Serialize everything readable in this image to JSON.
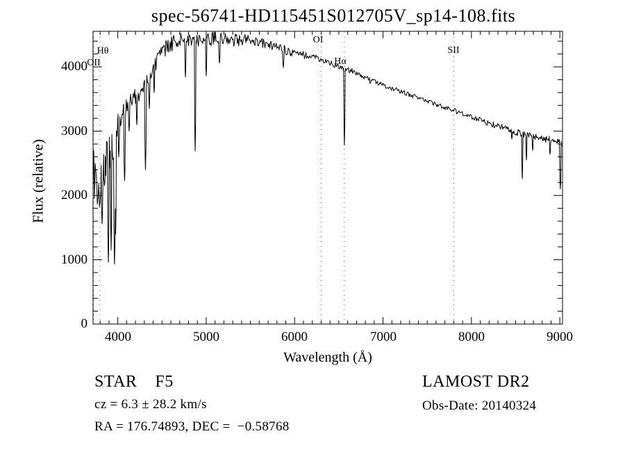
{
  "title": "spec-56741-HD115451S012705V_sp14-108.fits",
  "annotations": {
    "class_line": "STAR    F5",
    "cz_line": "cz = 6.3 ± 28.2 km/s",
    "radec_line": "RA = 176.74893, DEC =  −0.58768",
    "survey": "LAMOST DR2",
    "obs_date_line": "Obs-Date: 20140324"
  },
  "colors": {
    "curve": "#000000",
    "marker_line": "#993333",
    "frame": "#000000",
    "text": "#000000",
    "background": "#ffffff"
  },
  "chart_data": {
    "type": "line",
    "title": "spec-56741-HD115451S012705V_sp14-108.fits",
    "xlabel": "Wavelength (Å)",
    "ylabel": "Flux (relative)",
    "xlim": [
      3720,
      9030
    ],
    "ylim": [
      0,
      4553
    ],
    "grid": false,
    "x_ticks": [
      4000,
      5000,
      6000,
      7000,
      8000,
      9000
    ],
    "y_ticks": [
      0,
      1000,
      2000,
      3000,
      4000
    ],
    "x_minor_step": 100,
    "y_minor_step": 200,
    "line_markers": [
      {
        "label": "OII",
        "wavelength": 3727,
        "label_dx": 0,
        "label_y": 84
      },
      {
        "label": "Hθ",
        "wavelength": 3798,
        "label_dx": 4,
        "label_y": 67
      },
      {
        "label": "OI",
        "wavelength": 6300,
        "label_dx": -4,
        "label_y": 51
      },
      {
        "label": "Hα",
        "wavelength": 6563,
        "label_dx": -6,
        "label_y": 82
      },
      {
        "label": "SII",
        "wavelength": 7800,
        "label_dx": 0,
        "label_y": 66
      }
    ],
    "continuum": [
      [
        3720,
        2150
      ],
      [
        3760,
        2150
      ],
      [
        3800,
        2300
      ],
      [
        3840,
        2450
      ],
      [
        3880,
        2600
      ],
      [
        3920,
        2750
      ],
      [
        3960,
        2900
      ],
      [
        4000,
        3080
      ],
      [
        4040,
        3230
      ],
      [
        4090,
        3350
      ],
      [
        4140,
        3440
      ],
      [
        4200,
        3540
      ],
      [
        4260,
        3620
      ],
      [
        4320,
        3720
      ],
      [
        4380,
        3880
      ],
      [
        4440,
        4060
      ],
      [
        4500,
        4220
      ],
      [
        4560,
        4320
      ],
      [
        4640,
        4390
      ],
      [
        4720,
        4420
      ],
      [
        4800,
        4430
      ],
      [
        4900,
        4420
      ],
      [
        5000,
        4430
      ],
      [
        5100,
        4440
      ],
      [
        5200,
        4430
      ],
      [
        5300,
        4410
      ],
      [
        5400,
        4420
      ],
      [
        5500,
        4400
      ],
      [
        5600,
        4370
      ],
      [
        5700,
        4340
      ],
      [
        5800,
        4300
      ],
      [
        5900,
        4260
      ],
      [
        6000,
        4220
      ],
      [
        6100,
        4190
      ],
      [
        6200,
        4150
      ],
      [
        6300,
        4110
      ],
      [
        6400,
        4060
      ],
      [
        6500,
        4010
      ],
      [
        6600,
        3960
      ],
      [
        6700,
        3900
      ],
      [
        6800,
        3840
      ],
      [
        6900,
        3780
      ],
      [
        7000,
        3720
      ],
      [
        7100,
        3670
      ],
      [
        7200,
        3620
      ],
      [
        7300,
        3570
      ],
      [
        7400,
        3520
      ],
      [
        7500,
        3470
      ],
      [
        7600,
        3420
      ],
      [
        7700,
        3370
      ],
      [
        7800,
        3320
      ],
      [
        7900,
        3270
      ],
      [
        8000,
        3220
      ],
      [
        8100,
        3170
      ],
      [
        8200,
        3120
      ],
      [
        8300,
        3080
      ],
      [
        8400,
        3040
      ],
      [
        8500,
        2990
      ],
      [
        8600,
        2950
      ],
      [
        8700,
        2905
      ],
      [
        8800,
        2880
      ],
      [
        8900,
        2870
      ],
      [
        8950,
        2855
      ],
      [
        9000,
        2820
      ],
      [
        9030,
        2800
      ]
    ],
    "absorption_lines": [
      [
        3822,
        1560,
        10
      ],
      [
        3850,
        2150,
        8
      ],
      [
        3893,
        960,
        10
      ],
      [
        3924,
        1150,
        9
      ],
      [
        3963,
        930,
        12
      ],
      [
        3976,
        1400,
        8
      ],
      [
        4011,
        2600,
        8
      ],
      [
        4077,
        2230,
        11
      ],
      [
        4128,
        3000,
        8
      ],
      [
        4215,
        3100,
        8
      ],
      [
        4313,
        2400,
        11
      ],
      [
        4356,
        3350,
        8
      ],
      [
        4411,
        3600,
        7
      ],
      [
        4765,
        3840,
        8
      ],
      [
        4875,
        2690,
        10
      ],
      [
        5000,
        3860,
        8
      ],
      [
        5150,
        4060,
        10
      ],
      [
        5872,
        3990,
        10
      ],
      [
        6563,
        2780,
        9
      ],
      [
        6854,
        3740,
        8
      ],
      [
        8457,
        2880,
        7
      ],
      [
        8575,
        2260,
        8
      ],
      [
        8622,
        2550,
        7
      ],
      [
        8693,
        2700,
        7
      ],
      [
        8889,
        2640,
        8
      ],
      [
        9005,
        2100,
        10
      ]
    ],
    "noise_profile": [
      [
        3720,
        580
      ],
      [
        3790,
        480
      ],
      [
        3830,
        380
      ],
      [
        3900,
        320
      ],
      [
        3960,
        280
      ],
      [
        4000,
        190
      ],
      [
        4060,
        140
      ],
      [
        4200,
        130
      ],
      [
        4400,
        135
      ],
      [
        4700,
        115
      ],
      [
        5000,
        110
      ],
      [
        5300,
        95
      ],
      [
        5600,
        85
      ],
      [
        5900,
        70
      ],
      [
        6200,
        55
      ],
      [
        6500,
        48
      ],
      [
        6900,
        42
      ],
      [
        7400,
        36
      ],
      [
        7900,
        40
      ],
      [
        8400,
        48
      ],
      [
        8700,
        55
      ],
      [
        9030,
        45
      ]
    ]
  }
}
